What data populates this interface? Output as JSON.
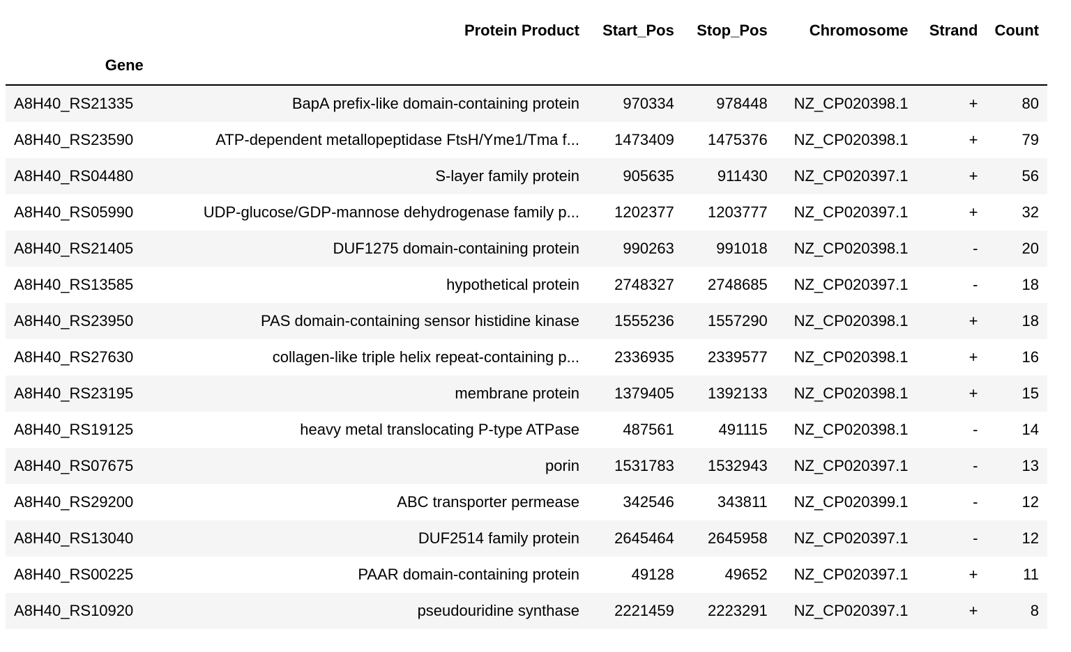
{
  "table": {
    "index_name": "Gene",
    "columns": [
      "Protein Product",
      "Start_Pos",
      "Stop_Pos",
      "Chromosome",
      "Strand",
      "Count"
    ],
    "rows": [
      {
        "gene": "A8H40_RS21335",
        "protein": "BapA prefix-like domain-containing protein",
        "start": "970334",
        "stop": "978448",
        "chrom": "NZ_CP020398.1",
        "strand": "+",
        "count": "80"
      },
      {
        "gene": "A8H40_RS23590",
        "protein": "ATP-dependent metallopeptidase FtsH/Yme1/Tma f...",
        "start": "1473409",
        "stop": "1475376",
        "chrom": "NZ_CP020398.1",
        "strand": "+",
        "count": "79"
      },
      {
        "gene": "A8H40_RS04480",
        "protein": "S-layer family protein",
        "start": "905635",
        "stop": "911430",
        "chrom": "NZ_CP020397.1",
        "strand": "+",
        "count": "56"
      },
      {
        "gene": "A8H40_RS05990",
        "protein": "UDP-glucose/GDP-mannose dehydrogenase family p...",
        "start": "1202377",
        "stop": "1203777",
        "chrom": "NZ_CP020397.1",
        "strand": "+",
        "count": "32"
      },
      {
        "gene": "A8H40_RS21405",
        "protein": "DUF1275 domain-containing protein",
        "start": "990263",
        "stop": "991018",
        "chrom": "NZ_CP020398.1",
        "strand": "-",
        "count": "20"
      },
      {
        "gene": "A8H40_RS13585",
        "protein": "hypothetical protein",
        "start": "2748327",
        "stop": "2748685",
        "chrom": "NZ_CP020397.1",
        "strand": "-",
        "count": "18"
      },
      {
        "gene": "A8H40_RS23950",
        "protein": "PAS domain-containing sensor histidine kinase",
        "start": "1555236",
        "stop": "1557290",
        "chrom": "NZ_CP020398.1",
        "strand": "+",
        "count": "18"
      },
      {
        "gene": "A8H40_RS27630",
        "protein": "collagen-like triple helix repeat-containing p...",
        "start": "2336935",
        "stop": "2339577",
        "chrom": "NZ_CP020398.1",
        "strand": "+",
        "count": "16"
      },
      {
        "gene": "A8H40_RS23195",
        "protein": "membrane protein",
        "start": "1379405",
        "stop": "1392133",
        "chrom": "NZ_CP020398.1",
        "strand": "+",
        "count": "15"
      },
      {
        "gene": "A8H40_RS19125",
        "protein": "heavy metal translocating P-type ATPase",
        "start": "487561",
        "stop": "491115",
        "chrom": "NZ_CP020398.1",
        "strand": "-",
        "count": "14"
      },
      {
        "gene": "A8H40_RS07675",
        "protein": "porin",
        "start": "1531783",
        "stop": "1532943",
        "chrom": "NZ_CP020397.1",
        "strand": "-",
        "count": "13"
      },
      {
        "gene": "A8H40_RS29200",
        "protein": "ABC transporter permease",
        "start": "342546",
        "stop": "343811",
        "chrom": "NZ_CP020399.1",
        "strand": "-",
        "count": "12"
      },
      {
        "gene": "A8H40_RS13040",
        "protein": "DUF2514 family protein",
        "start": "2645464",
        "stop": "2645958",
        "chrom": "NZ_CP020397.1",
        "strand": "-",
        "count": "12"
      },
      {
        "gene": "A8H40_RS00225",
        "protein": "PAAR domain-containing protein",
        "start": "49128",
        "stop": "49652",
        "chrom": "NZ_CP020397.1",
        "strand": "+",
        "count": "11"
      },
      {
        "gene": "A8H40_RS10920",
        "protein": "pseudouridine synthase",
        "start": "2221459",
        "stop": "2223291",
        "chrom": "NZ_CP020397.1",
        "strand": "+",
        "count": "8"
      }
    ]
  }
}
